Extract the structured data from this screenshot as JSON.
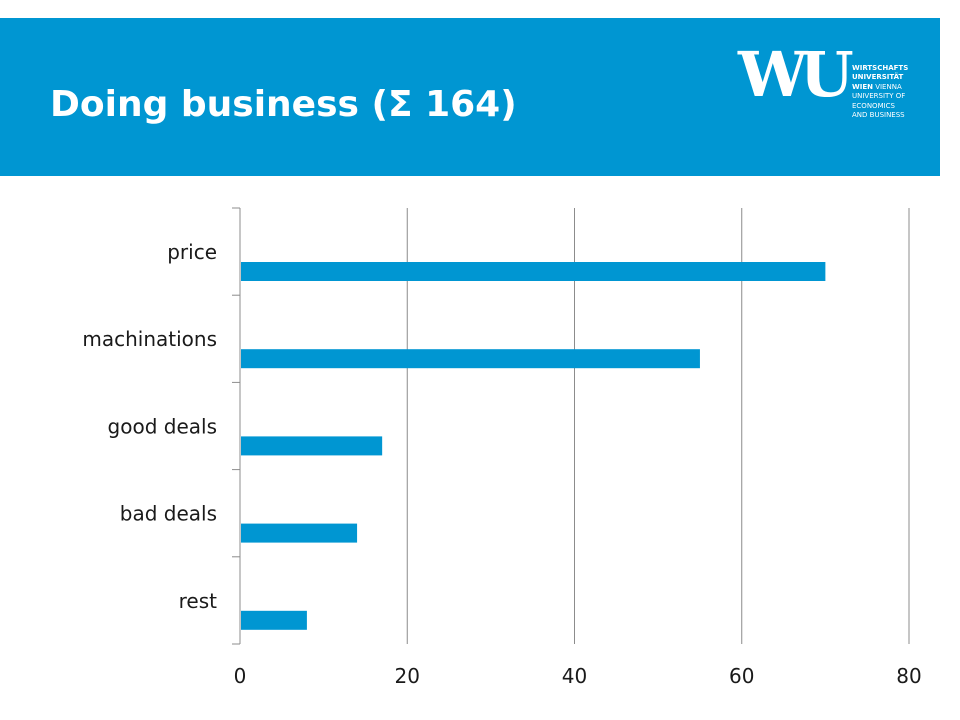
{
  "header": {
    "title": "Doing business (Σ 164)",
    "logo_mark": "WU",
    "logo_lines": [
      {
        "text": "WIRTSCHAFTS",
        "bold": true
      },
      {
        "text": "UNIVERSITÄT",
        "bold": true
      },
      {
        "text": "WIEN",
        "bold": true,
        "suffix": " VIENNA"
      },
      {
        "text": "UNIVERSITY OF",
        "bold": false
      },
      {
        "text": "ECONOMICS",
        "bold": false
      },
      {
        "text": "AND BUSINESS",
        "bold": false
      }
    ],
    "banner_color": "#0096D2"
  },
  "chart_data": {
    "type": "bar",
    "orientation": "horizontal",
    "categories": [
      "price",
      "machinations",
      "good deals",
      "bad deals",
      "rest"
    ],
    "values": [
      70,
      55,
      17,
      14,
      8
    ],
    "xlim": [
      0,
      80
    ],
    "xticks": [
      0,
      20,
      40,
      60,
      80
    ],
    "grid": true,
    "bar_color": "#0096D2",
    "title": "",
    "xlabel": "",
    "ylabel": ""
  }
}
